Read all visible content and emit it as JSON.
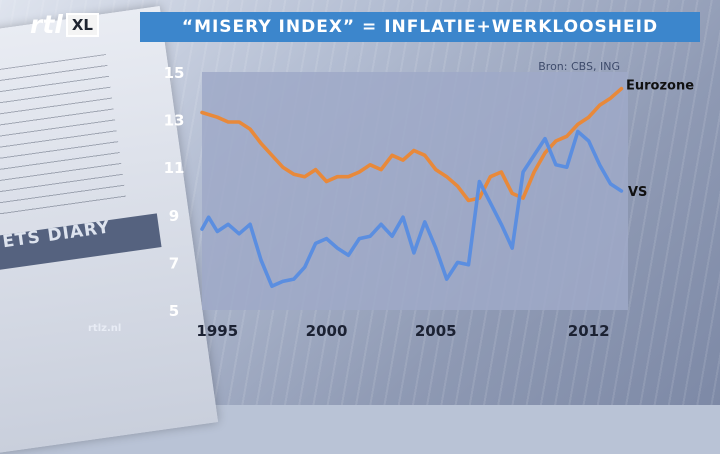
{
  "header": {
    "logo_main": "rtl",
    "logo_badge": "XL",
    "title": "“MISERY INDEX” =  INFLATIE+WERKLOOSHEID"
  },
  "background": {
    "diary_text": "ETS DIARY"
  },
  "footer": {
    "site": "rtlz.nl"
  },
  "colors": {
    "eurozone": "#e8893a",
    "vs": "#5b8ee0",
    "title_bar": "#3c86cc",
    "plot_bg": "#9fa9c8"
  },
  "chart_data": {
    "type": "line",
    "title": "“MISERY INDEX” =  INFLATIE+WERKLOOSHEID",
    "source": "Bron: CBS, ING",
    "xlabel": "",
    "ylabel": "",
    "xlim": [
      1994.3,
      2013.8
    ],
    "ylim": [
      5,
      15
    ],
    "x_ticks": [
      1995,
      2000,
      2005,
      2012
    ],
    "x_tick_labels": [
      "1995",
      "2000",
      "2005",
      "2012"
    ],
    "y_ticks": [
      5,
      7,
      9,
      11,
      13,
      15
    ],
    "y_tick_labels": [
      "5",
      "7",
      "9",
      "11",
      "13",
      "15"
    ],
    "grid": false,
    "series": [
      {
        "name": "Eurozone",
        "x": [
          1994.3,
          1995.0,
          1995.5,
          1996.0,
          1996.5,
          1997.0,
          1997.5,
          1998.0,
          1998.5,
          1999.0,
          1999.5,
          2000.0,
          2000.5,
          2001.0,
          2001.5,
          2002.0,
          2002.5,
          2003.0,
          2003.5,
          2004.0,
          2004.5,
          2005.0,
          2005.5,
          2006.0,
          2006.5,
          2007.0,
          2007.5,
          2008.0,
          2008.5,
          2009.0,
          2009.5,
          2010.0,
          2010.5,
          2011.0,
          2011.5,
          2012.0,
          2012.5,
          2013.0,
          2013.5
        ],
        "values": [
          13.3,
          13.1,
          12.9,
          12.9,
          12.6,
          12.0,
          11.5,
          11.0,
          10.7,
          10.6,
          10.9,
          10.4,
          10.6,
          10.6,
          10.8,
          11.1,
          10.9,
          11.5,
          11.3,
          11.7,
          11.5,
          10.9,
          10.6,
          10.2,
          9.6,
          9.7,
          10.6,
          10.8,
          9.9,
          9.7,
          10.8,
          11.6,
          12.1,
          12.3,
          12.8,
          13.1,
          13.6,
          13.9,
          14.3
        ]
      },
      {
        "name": "VS",
        "x": [
          1994.3,
          1994.6,
          1995.0,
          1995.5,
          1996.0,
          1996.5,
          1997.0,
          1997.5,
          1998.0,
          1998.5,
          1999.0,
          1999.5,
          2000.0,
          2000.5,
          2001.0,
          2001.5,
          2002.0,
          2002.5,
          2003.0,
          2003.5,
          2004.0,
          2004.5,
          2005.0,
          2005.5,
          2006.0,
          2006.5,
          2007.0,
          2007.5,
          2008.0,
          2008.5,
          2009.0,
          2009.5,
          2010.0,
          2010.5,
          2011.0,
          2011.5,
          2012.0,
          2012.5,
          2013.0,
          2013.5
        ],
        "values": [
          8.4,
          8.9,
          8.3,
          8.6,
          8.2,
          8.6,
          7.1,
          6.0,
          6.2,
          6.3,
          6.8,
          7.8,
          8.0,
          7.6,
          7.3,
          8.0,
          8.1,
          8.6,
          8.1,
          8.9,
          7.4,
          8.7,
          7.6,
          6.3,
          7.0,
          6.9,
          10.4,
          9.5,
          8.6,
          7.6,
          10.8,
          11.5,
          12.2,
          11.1,
          11.0,
          12.5,
          12.1,
          11.1,
          10.3,
          10.0
        ]
      }
    ]
  }
}
